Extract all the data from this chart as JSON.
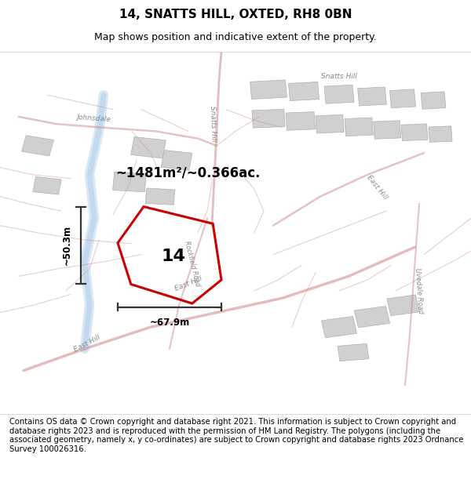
{
  "title": "14, SNATTS HILL, OXTED, RH8 0BN",
  "subtitle": "Map shows position and indicative extent of the property.",
  "footer": "Contains OS data © Crown copyright and database right 2021. This information is subject to Crown copyright and database rights 2023 and is reproduced with the permission of HM Land Registry. The polygons (including the associated geometry, namely x, y co-ordinates) are subject to Crown copyright and database rights 2023 Ordnance Survey 100026316.",
  "area_label": "~1481m²/~0.366ac.",
  "number_label": "14",
  "width_label": "~67.9m",
  "height_label": "~50.3m",
  "map_bg": "#eeece8",
  "title_fontsize": 11,
  "subtitle_fontsize": 9,
  "footer_fontsize": 7.2,
  "highlight_color": "#cc0000",
  "dim_color": "#333333",
  "water_color": "#c8dff0",
  "road_color": "#cc8888",
  "minor_road_color": "#d09090",
  "building_color": "#d0d0d0",
  "building_edge": "#b0b0b0",
  "label_color": "#888888"
}
